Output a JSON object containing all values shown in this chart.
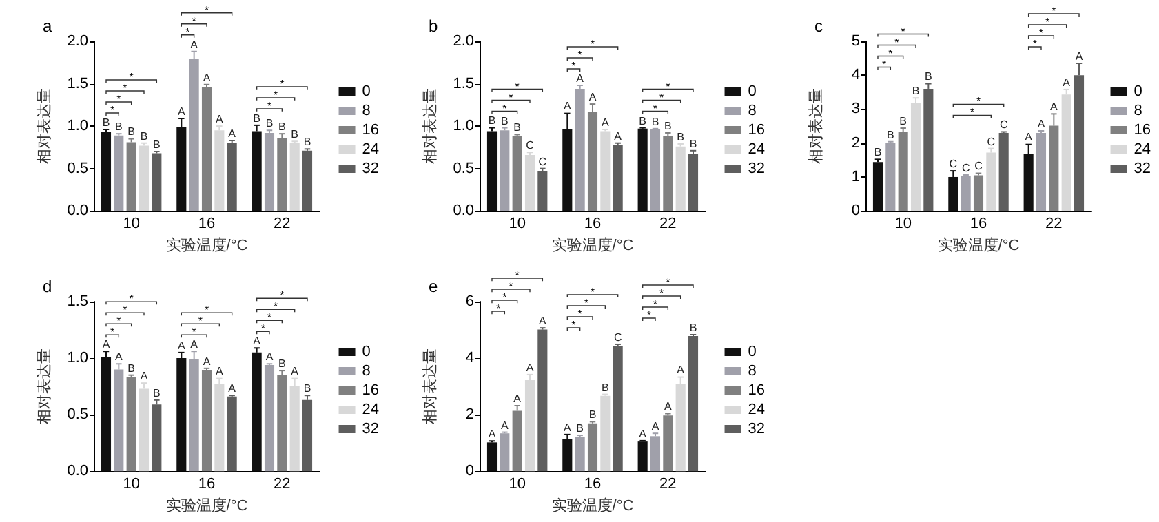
{
  "chart_data": [
    {
      "type": "bar",
      "title": "a",
      "xlabel": "实验温度/°C",
      "ylabel": "相对表达量",
      "categories": [
        "10",
        "16",
        "22"
      ],
      "legend": "right",
      "grid": false,
      "ylim": [
        0,
        2
      ],
      "yticks": [
        {
          "value": 0,
          "label": "0.0"
        },
        {
          "value": 0.5,
          "label": "0.5"
        },
        {
          "value": 1,
          "label": "1.0"
        },
        {
          "value": 1.5,
          "label": "1.5"
        },
        {
          "value": 2,
          "label": "2.0"
        }
      ],
      "series": [
        {
          "name": "0",
          "color": "#111111",
          "values": [
            0.93,
            0.99,
            0.94
          ],
          "errors": [
            0.03,
            0.1,
            0.07
          ],
          "value_labels": [
            "B",
            "A",
            "B"
          ]
        },
        {
          "name": "8",
          "color": "#a0a0aa",
          "values": [
            0.89,
            1.79,
            0.92
          ],
          "errors": [
            0.02,
            0.09,
            0.03
          ],
          "value_labels": [
            "B",
            "A",
            "B"
          ]
        },
        {
          "name": "16",
          "color": "#808080",
          "values": [
            0.81,
            1.46,
            0.86
          ],
          "errors": [
            0.04,
            0.03,
            0.05
          ],
          "value_labels": [
            "B",
            "A",
            "B"
          ]
        },
        {
          "name": "24",
          "color": "#d8d8d8",
          "values": [
            0.77,
            0.95,
            0.8
          ],
          "errors": [
            0.03,
            0.05,
            0.02
          ],
          "value_labels": [
            "B",
            "A",
            "B"
          ]
        },
        {
          "name": "32",
          "color": "#5e5e5e",
          "values": [
            0.68,
            0.8,
            0.71
          ],
          "errors": [
            0.02,
            0.03,
            0.02
          ],
          "value_labels": [
            "B",
            "A",
            "B"
          ]
        }
      ],
      "annotations": [
        "*",
        "*",
        "*",
        "*",
        "*",
        "*",
        "*",
        "*",
        "*",
        "*"
      ]
    },
    {
      "type": "bar",
      "title": "b",
      "xlabel": "实验温度/°C",
      "ylabel": "相对表达量",
      "categories": [
        "10",
        "16",
        "22"
      ],
      "legend": "right",
      "grid": false,
      "ylim": [
        0,
        2
      ],
      "yticks": [
        {
          "value": 0,
          "label": "0.0"
        },
        {
          "value": 0.5,
          "label": "0.5"
        },
        {
          "value": 1,
          "label": "1.0"
        },
        {
          "value": 1.5,
          "label": "1.5"
        },
        {
          "value": 2,
          "label": "2.0"
        }
      ],
      "series": [
        {
          "name": "0",
          "color": "#111111",
          "values": [
            0.94,
            0.96,
            0.97
          ],
          "errors": [
            0.04,
            0.19,
            0.01
          ],
          "value_labels": [
            "B",
            "A",
            "B"
          ]
        },
        {
          "name": "8",
          "color": "#a0a0aa",
          "values": [
            0.95,
            1.44,
            0.96
          ],
          "errors": [
            0.03,
            0.04,
            0.01
          ],
          "value_labels": [
            "B",
            "A",
            "B"
          ]
        },
        {
          "name": "16",
          "color": "#808080",
          "values": [
            0.88,
            1.17,
            0.88
          ],
          "errors": [
            0.02,
            0.09,
            0.04
          ],
          "value_labels": [
            "B",
            "A",
            "B"
          ]
        },
        {
          "name": "24",
          "color": "#d8d8d8",
          "values": [
            0.66,
            0.94,
            0.76
          ],
          "errors": [
            0.03,
            0.02,
            0.03
          ],
          "value_labels": [
            "C",
            "A",
            "B"
          ]
        },
        {
          "name": "32",
          "color": "#5e5e5e",
          "values": [
            0.47,
            0.78,
            0.67
          ],
          "errors": [
            0.03,
            0.02,
            0.04
          ],
          "value_labels": [
            "C",
            "A",
            "B"
          ]
        }
      ],
      "annotations": [
        "*",
        "*",
        "*",
        "*",
        "*",
        "*",
        "*",
        "*",
        "*"
      ]
    },
    {
      "type": "bar",
      "title": "c",
      "xlabel": "实验温度/°C",
      "ylabel": "相对表达量",
      "categories": [
        "10",
        "16",
        "22"
      ],
      "legend": "right",
      "grid": false,
      "ylim": [
        0,
        5
      ],
      "yticks": [
        0,
        1,
        2,
        3,
        4,
        5
      ],
      "series": [
        {
          "name": "0",
          "color": "#111111",
          "values": [
            1.44,
            1.0,
            1.68
          ],
          "errors": [
            0.08,
            0.18,
            0.28
          ],
          "value_labels": [
            "B",
            "C",
            "A"
          ]
        },
        {
          "name": "8",
          "color": "#a0a0aa",
          "values": [
            2.0,
            1.02,
            2.3
          ],
          "errors": [
            0.04,
            0.04,
            0.06
          ],
          "value_labels": [
            "B",
            "C",
            "A"
          ]
        },
        {
          "name": "16",
          "color": "#808080",
          "values": [
            2.32,
            1.05,
            2.51
          ],
          "errors": [
            0.12,
            0.06,
            0.35
          ],
          "value_labels": [
            "B",
            "C",
            "A"
          ]
        },
        {
          "name": "24",
          "color": "#d8d8d8",
          "values": [
            3.18,
            1.72,
            3.43
          ],
          "errors": [
            0.15,
            0.12,
            0.15
          ],
          "value_labels": [
            "B",
            "C",
            "A"
          ]
        },
        {
          "name": "32",
          "color": "#5e5e5e",
          "values": [
            3.6,
            2.3,
            4.0
          ],
          "errors": [
            0.15,
            0.03,
            0.35
          ],
          "value_labels": [
            "B",
            "C",
            "A"
          ]
        }
      ],
      "annotations": [
        "*",
        "*",
        "*",
        "*",
        "*",
        "*",
        "*",
        "*",
        "*",
        "*"
      ]
    },
    {
      "type": "bar",
      "title": "d",
      "xlabel": "实验温度/°C",
      "ylabel": "相对表达量",
      "categories": [
        "10",
        "16",
        "22"
      ],
      "legend": "right",
      "grid": false,
      "ylim": [
        0,
        1.5
      ],
      "yticks": [
        {
          "value": 0,
          "label": "0.0"
        },
        {
          "value": 0.5,
          "label": "0.5"
        },
        {
          "value": 1,
          "label": "1.0"
        },
        {
          "value": 1.5,
          "label": "1.5"
        }
      ],
      "series": [
        {
          "name": "0",
          "color": "#111111",
          "values": [
            1.01,
            1.0,
            1.05
          ],
          "errors": [
            0.05,
            0.05,
            0.04
          ],
          "value_labels": [
            "A",
            "A",
            "A"
          ]
        },
        {
          "name": "8",
          "color": "#a0a0aa",
          "values": [
            0.9,
            0.99,
            0.94
          ],
          "errors": [
            0.05,
            0.07,
            0.01
          ],
          "value_labels": [
            "A",
            "A",
            "A"
          ]
        },
        {
          "name": "16",
          "color": "#808080",
          "values": [
            0.83,
            0.89,
            0.85
          ],
          "errors": [
            0.02,
            0.02,
            0.04
          ],
          "value_labels": [
            "B",
            "A",
            "B"
          ]
        },
        {
          "name": "24",
          "color": "#d8d8d8",
          "values": [
            0.73,
            0.77,
            0.75
          ],
          "errors": [
            0.05,
            0.05,
            0.07
          ],
          "value_labels": [
            "A",
            "A",
            "A"
          ]
        },
        {
          "name": "32",
          "color": "#5e5e5e",
          "values": [
            0.59,
            0.66,
            0.63
          ],
          "errors": [
            0.04,
            0.01,
            0.04
          ],
          "value_labels": [
            "B",
            "A",
            "B"
          ]
        }
      ],
      "annotations": [
        "*",
        "*",
        "*",
        "*",
        "*",
        "*",
        "*",
        "*",
        "*",
        "*",
        "*"
      ]
    },
    {
      "type": "bar",
      "title": "e",
      "xlabel": "实验温度/°C",
      "ylabel": "相对表达量",
      "categories": [
        "10",
        "16",
        "22"
      ],
      "legend": "right",
      "grid": false,
      "ylim": [
        0,
        6
      ],
      "yticks": [
        0,
        2,
        4,
        6
      ],
      "series": [
        {
          "name": "0",
          "color": "#111111",
          "values": [
            1.02,
            1.15,
            1.05
          ],
          "errors": [
            0.05,
            0.15,
            0.03
          ],
          "value_labels": [
            "A",
            "A",
            "A"
          ]
        },
        {
          "name": "8",
          "color": "#a0a0aa",
          "values": [
            1.34,
            1.21,
            1.24
          ],
          "errors": [
            0.04,
            0.06,
            0.1
          ],
          "value_labels": [
            "A",
            "B",
            "A"
          ]
        },
        {
          "name": "16",
          "color": "#808080",
          "values": [
            2.14,
            1.69,
            1.97
          ],
          "errors": [
            0.18,
            0.06,
            0.07
          ],
          "value_labels": [
            "A",
            "B",
            "A"
          ]
        },
        {
          "name": "24",
          "color": "#d8d8d8",
          "values": [
            3.22,
            2.67,
            3.08
          ],
          "errors": [
            0.2,
            0.05,
            0.25
          ],
          "value_labels": [
            "A",
            "B",
            "A"
          ]
        },
        {
          "name": "32",
          "color": "#5e5e5e",
          "values": [
            5.01,
            4.43,
            4.78
          ],
          "errors": [
            0.06,
            0.06,
            0.05
          ],
          "value_labels": [
            "A",
            "C",
            "B"
          ]
        }
      ],
      "annotations": [
        "*",
        "*",
        "*",
        "*",
        "*",
        "*",
        "*",
        "*",
        "*",
        "*",
        "*",
        "*"
      ]
    }
  ]
}
